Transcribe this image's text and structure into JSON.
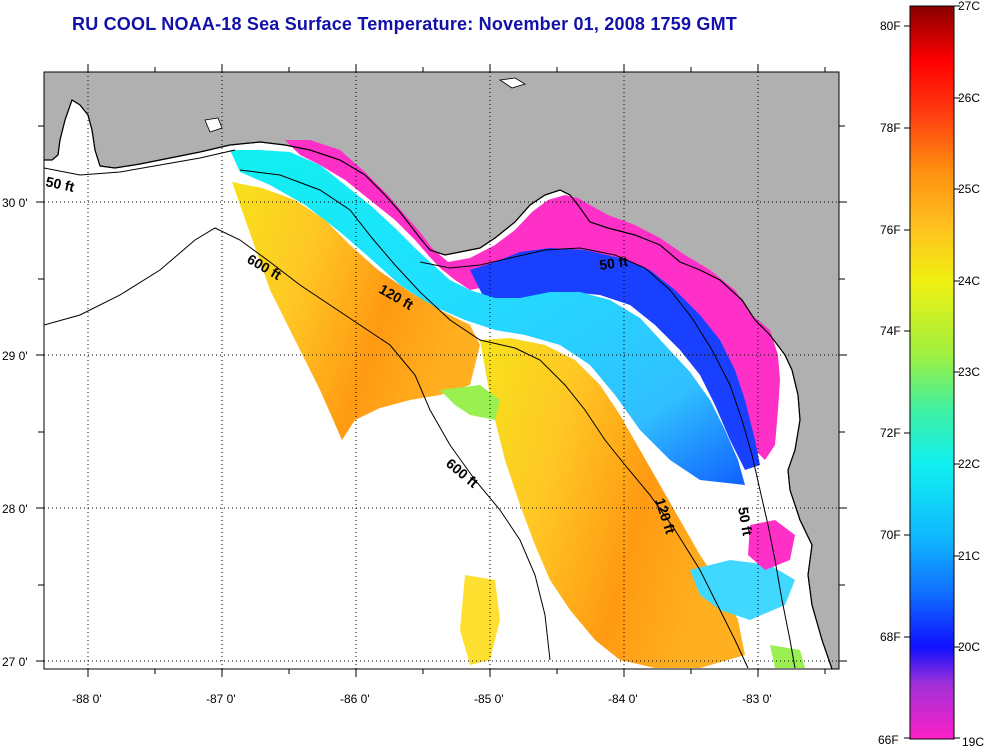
{
  "title": "RU COOL  NOAA-18  Sea Surface Temperature:  November 01, 2008 1759 GMT",
  "map": {
    "lon_ticks": [
      "-88 0'",
      "-87 0'",
      "-86 0'",
      "-85 0'",
      "-84 0'",
      "-83 0'"
    ],
    "lat_ticks": [
      "30 0'",
      "29 0'",
      "28 0'",
      "27 0'"
    ],
    "colors": {
      "land": "#b0b0b0",
      "frame": "#000000",
      "grid": "#000000",
      "contour": "#000000"
    },
    "contours": [
      {
        "label": "50 ft"
      },
      {
        "label": "600 ft"
      },
      {
        "label": "120 ft"
      },
      {
        "label": "50 ft"
      },
      {
        "label": "600 ft"
      },
      {
        "label": "120 ft"
      },
      {
        "label": "50 ft"
      }
    ]
  },
  "colorbar": {
    "fahrenheit_labels": [
      "80F",
      "78F",
      "76F",
      "74F",
      "72F",
      "70F",
      "68F",
      "66F"
    ],
    "celsius_labels": [
      "27C",
      "26C",
      "25C",
      "24C",
      "23C",
      "22C",
      "21C",
      "20C",
      "19C"
    ],
    "celsius_range": [
      19,
      27
    ],
    "fahrenheit_range": [
      66.2,
      80.6
    ],
    "gradient_stops": [
      {
        "c": 19,
        "color": "#ff20c8"
      },
      {
        "c": 19.6,
        "color": "#a030d8"
      },
      {
        "c": 20,
        "color": "#1010ff"
      },
      {
        "c": 20.6,
        "color": "#1070ff"
      },
      {
        "c": 21.2,
        "color": "#10b8ff"
      },
      {
        "c": 22,
        "color": "#10f0f0"
      },
      {
        "c": 22.6,
        "color": "#40f0a0"
      },
      {
        "c": 23.2,
        "color": "#a0f040"
      },
      {
        "c": 24,
        "color": "#f0f010"
      },
      {
        "c": 24.6,
        "color": "#ffc020"
      },
      {
        "c": 25.2,
        "color": "#ff9010"
      },
      {
        "c": 25.8,
        "color": "#ff4010"
      },
      {
        "c": 26.4,
        "color": "#ff0000"
      },
      {
        "c": 27,
        "color": "#880000"
      }
    ]
  }
}
